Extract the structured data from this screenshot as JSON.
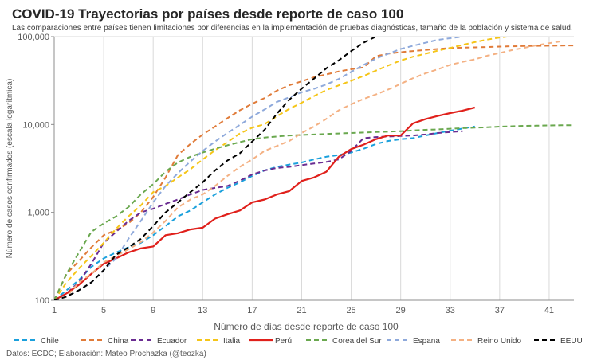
{
  "title": "COVID-19 Trayectorias por países desde reporte de caso 100",
  "subtitle": "Las comparaciones entre países tienen limitaciones por diferencias en la implementación de pruebas diagnósticas, tamaño de la población y sistema de salud.",
  "source": "Datos: ECDC; Elaboración: Mateo Prochazka (@teozka)",
  "chart_data": {
    "type": "line",
    "xlabel": "Número de días desde reporte de caso 100",
    "ylabel": "Número de casos confirmados (escala logarítmica)",
    "y_scale": "log",
    "xlim": [
      1,
      43
    ],
    "ylim": [
      100,
      100000
    ],
    "x_ticks": [
      1,
      5,
      9,
      13,
      17,
      21,
      25,
      29,
      33,
      37,
      41
    ],
    "y_ticks": [
      100,
      1000,
      10000,
      100000
    ],
    "y_tick_labels": [
      "100",
      "1,000",
      "10,000",
      "100,000"
    ],
    "grid": "vertical",
    "legend": "bottom",
    "series": [
      {
        "name": "Chile",
        "color": "#1aa0dc",
        "dash": "dashed",
        "x": [
          1,
          2,
          3,
          4,
          5,
          6,
          7,
          8,
          9,
          10,
          11,
          12,
          13,
          14,
          15,
          16,
          17,
          18,
          19,
          20,
          21,
          22,
          23,
          24,
          25,
          26,
          27,
          28,
          29,
          30,
          31,
          32,
          33,
          34,
          35
        ],
        "y": [
          100,
          130,
          170,
          240,
          300,
          350,
          400,
          450,
          550,
          700,
          900,
          1050,
          1300,
          1600,
          1900,
          2200,
          2600,
          3000,
          3300,
          3500,
          3700,
          4000,
          4300,
          4500,
          4800,
          5300,
          6000,
          6500,
          6800,
          7000,
          7500,
          8000,
          8500,
          9000,
          9500
        ]
      },
      {
        "name": "China",
        "color": "#e07b39",
        "dash": "dashed",
        "x": [
          1,
          2,
          3,
          4,
          5,
          6,
          7,
          8,
          9,
          10,
          11,
          12,
          13,
          14,
          15,
          16,
          17,
          18,
          19,
          20,
          21,
          22,
          23,
          24,
          25,
          26,
          27,
          28,
          29,
          30,
          31,
          32,
          33,
          34,
          35,
          36,
          37,
          38,
          39,
          40,
          41,
          42,
          43
        ],
        "y": [
          100,
          200,
          280,
          400,
          550,
          630,
          750,
          1000,
          1500,
          2500,
          4500,
          6000,
          7700,
          9500,
          11800,
          14500,
          17200,
          20000,
          24300,
          28000,
          31000,
          34500,
          37200,
          40200,
          42600,
          44600,
          59800,
          64000,
          66500,
          68500,
          70500,
          72400,
          74200,
          75000,
          75500,
          76300,
          77000,
          77700,
          78100,
          78500,
          78800,
          79100,
          79300
        ]
      },
      {
        "name": "Ecuador",
        "color": "#6a2c91",
        "dash": "dashed",
        "x": [
          1,
          2,
          3,
          4,
          5,
          6,
          7,
          8,
          9,
          10,
          11,
          12,
          13,
          14,
          15,
          16,
          17,
          18,
          19,
          20,
          21,
          22,
          23,
          24,
          25,
          26,
          27,
          28,
          29,
          30,
          31,
          32,
          33,
          34
        ],
        "y": [
          100,
          120,
          160,
          260,
          450,
          600,
          800,
          1000,
          1100,
          1250,
          1400,
          1600,
          1800,
          1900,
          2000,
          2300,
          2700,
          3000,
          3200,
          3300,
          3450,
          3600,
          3750,
          4000,
          5000,
          7000,
          7200,
          7300,
          7400,
          7500,
          7700,
          8000,
          8200,
          8400
        ]
      },
      {
        "name": "Italia",
        "color": "#f5c518",
        "dash": "dashed",
        "x": [
          1,
          2,
          3,
          4,
          5,
          6,
          7,
          8,
          9,
          10,
          11,
          12,
          13,
          14,
          15,
          16,
          17,
          18,
          19,
          20,
          21,
          22,
          23,
          24,
          25,
          26,
          27,
          28,
          29,
          30,
          31,
          32,
          33,
          34,
          35,
          36,
          37,
          38
        ],
        "y": [
          100,
          160,
          230,
          320,
          450,
          650,
          900,
          1200,
          1700,
          2000,
          2500,
          3100,
          4000,
          5100,
          6300,
          7900,
          9200,
          10100,
          12400,
          15100,
          17700,
          21100,
          24700,
          27900,
          31500,
          35700,
          41000,
          47000,
          53500,
          59100,
          63900,
          69200,
          74400,
          80500,
          86500,
          92500,
          97700,
          101700
        ]
      },
      {
        "name": "Perú",
        "color": "#e0201b",
        "dash": "solid",
        "x": [
          1,
          2,
          3,
          4,
          5,
          6,
          7,
          8,
          9,
          10,
          11,
          12,
          13,
          14,
          15,
          16,
          17,
          18,
          19,
          20,
          21,
          22,
          23,
          24,
          25,
          26,
          27,
          28,
          29,
          30,
          31,
          32,
          33,
          34,
          35
        ],
        "y": [
          100,
          120,
          150,
          200,
          260,
          300,
          350,
          390,
          410,
          550,
          580,
          640,
          670,
          850,
          950,
          1050,
          1300,
          1400,
          1600,
          1750,
          2280,
          2500,
          2900,
          4300,
          5250,
          5900,
          6800,
          7500,
          7500,
          10300,
          11500,
          12500,
          13500,
          14400,
          15600
        ]
      },
      {
        "name": "Corea del Sur",
        "color": "#6aa84f",
        "dash": "dashed",
        "x": [
          1,
          2,
          3,
          4,
          5,
          6,
          7,
          8,
          9,
          10,
          11,
          12,
          13,
          14,
          15,
          16,
          17,
          18,
          19,
          20,
          21,
          22,
          23,
          24,
          25,
          26,
          27,
          28,
          29,
          30,
          31,
          32,
          33,
          34,
          35,
          36,
          37,
          38,
          39,
          40,
          41,
          42,
          43
        ],
        "y": [
          100,
          200,
          350,
          600,
          750,
          900,
          1150,
          1600,
          2100,
          2900,
          3700,
          4300,
          4800,
          5300,
          5800,
          6300,
          6800,
          7100,
          7300,
          7500,
          7600,
          7700,
          7800,
          7900,
          8000,
          8100,
          8200,
          8300,
          8400,
          8550,
          8700,
          8800,
          8950,
          9100,
          9200,
          9300,
          9450,
          9550,
          9650,
          9700,
          9750,
          9800,
          9830
        ]
      },
      {
        "name": "Espana",
        "color": "#8ea9db",
        "dash": "dashed",
        "x": [
          1,
          2,
          3,
          4,
          5,
          6,
          7,
          8,
          9,
          10,
          11,
          12,
          13,
          14,
          15,
          16,
          17,
          18,
          19,
          20,
          21,
          22,
          23,
          24,
          25,
          26,
          27,
          28,
          29,
          30,
          31,
          32,
          33,
          34
        ],
        "y": [
          100,
          110,
          130,
          160,
          220,
          300,
          500,
          800,
          1300,
          2000,
          2800,
          3800,
          5000,
          6400,
          8000,
          9900,
          12300,
          14800,
          18100,
          20400,
          23300,
          25500,
          28500,
          33000,
          39700,
          47600,
          56200,
          64000,
          72300,
          78700,
          85200,
          92000,
          96000,
          100000
        ]
      },
      {
        "name": "Reino Unido",
        "color": "#f4b183",
        "dash": "dashed",
        "x": [
          1,
          2,
          3,
          4,
          5,
          6,
          7,
          8,
          9,
          10,
          11,
          12,
          13,
          14,
          15,
          16,
          17,
          18,
          19,
          20,
          21,
          22,
          23,
          24,
          25,
          26,
          27,
          28,
          29,
          30,
          31,
          32,
          33,
          34,
          35,
          36,
          37,
          38,
          39,
          40,
          41,
          42
        ],
        "y": [
          100,
          110,
          160,
          200,
          270,
          320,
          380,
          460,
          590,
          800,
          1140,
          1400,
          1600,
          2000,
          2600,
          3300,
          4000,
          5000,
          5700,
          6500,
          8000,
          9500,
          11600,
          14500,
          17000,
          19500,
          22000,
          25000,
          29000,
          33700,
          38200,
          42500,
          47800,
          51600,
          55200,
          60700,
          65100,
          70300,
          74600,
          79900,
          84300,
          88600
        ]
      },
      {
        "name": "EEUU",
        "color": "#000000",
        "dash": "dashed",
        "x": [
          1,
          2,
          3,
          4,
          5,
          6,
          7,
          8,
          9,
          10,
          11,
          12,
          13,
          14,
          15,
          16,
          17,
          18,
          19,
          20,
          21,
          22,
          23,
          24,
          25,
          26,
          27
        ],
        "y": [
          100,
          110,
          130,
          160,
          220,
          330,
          400,
          500,
          700,
          1000,
          1300,
          1700,
          2200,
          3000,
          3900,
          4700,
          6400,
          8700,
          13300,
          19200,
          25600,
          33300,
          43700,
          53700,
          68600,
          85300,
          100000
        ]
      }
    ]
  }
}
